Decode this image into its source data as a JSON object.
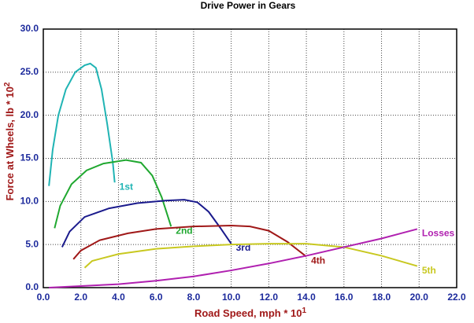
{
  "chart_data": {
    "type": "line",
    "title": "Drive Power in Gears",
    "x_label": "Road Speed, mph * 10",
    "x_label_exponent": "1",
    "y_label": "Force at Wheels, lb * 10",
    "y_label_exponent": "2",
    "xlim": [
      0,
      22
    ],
    "ylim": [
      0,
      30
    ],
    "grid": true,
    "xticks": [
      {
        "value": 0,
        "label": "0.0"
      },
      {
        "value": 2,
        "label": "2.0"
      },
      {
        "value": 4,
        "label": "4.0"
      },
      {
        "value": 6,
        "label": "6.0"
      },
      {
        "value": 8,
        "label": "8.0"
      },
      {
        "value": 10,
        "label": "10.0"
      },
      {
        "value": 12,
        "label": "12.0"
      },
      {
        "value": 14,
        "label": "14.0"
      },
      {
        "value": 16,
        "label": "16.0"
      },
      {
        "value": 18,
        "label": "18.0"
      },
      {
        "value": 20,
        "label": "20.0"
      },
      {
        "value": 22,
        "label": "22.0"
      }
    ],
    "yticks": [
      {
        "value": 0,
        "label": "0.0"
      },
      {
        "value": 5,
        "label": "5.0"
      },
      {
        "value": 10,
        "label": "10.0"
      },
      {
        "value": 15,
        "label": "15.0"
      },
      {
        "value": 20,
        "label": "20.0"
      },
      {
        "value": 25,
        "label": "25.0"
      },
      {
        "value": 30,
        "label": "30.0"
      }
    ],
    "series": [
      {
        "name": "1st",
        "color": "#20b4b4",
        "x": [
          0.3,
          0.5,
          0.8,
          1.2,
          1.7,
          2.2,
          2.5,
          2.8,
          3.1,
          3.4,
          3.7,
          3.8
        ],
        "values": [
          11.8,
          16,
          20,
          23,
          25,
          25.8,
          26,
          25.5,
          23,
          19,
          14.5,
          12.2
        ]
      },
      {
        "name": "2nd",
        "color": "#20a830",
        "x": [
          0.6,
          0.9,
          1.5,
          2.3,
          3.2,
          4.4,
          5.2,
          5.8,
          6.3,
          6.8
        ],
        "values": [
          6.9,
          9.5,
          12,
          13.6,
          14.4,
          14.8,
          14.5,
          13,
          10.5,
          7.1
        ]
      },
      {
        "name": "3rd",
        "color": "#1a1a8c",
        "x": [
          1.0,
          1.4,
          2.2,
          3.5,
          5.0,
          6.5,
          7.5,
          8.2,
          8.8,
          9.4,
          10.0
        ],
        "values": [
          4.7,
          6.5,
          8.2,
          9.2,
          9.8,
          10.1,
          10.2,
          9.9,
          8.8,
          7.0,
          5.1
        ]
      },
      {
        "name": "4th",
        "color": "#a01818",
        "x": [
          1.6,
          2.0,
          3.0,
          4.5,
          6.0,
          8.0,
          10.0,
          11.0,
          12.0,
          13.0,
          14.0
        ],
        "values": [
          3.3,
          4.3,
          5.5,
          6.3,
          6.8,
          7.1,
          7.2,
          7.1,
          6.6,
          5.3,
          3.6
        ]
      },
      {
        "name": "5th",
        "color": "#c8c820",
        "x": [
          2.2,
          2.6,
          4.0,
          6.0,
          8.0,
          10.0,
          12.0,
          14.0,
          16.0,
          18.0,
          19.9
        ],
        "values": [
          2.3,
          3.1,
          3.9,
          4.5,
          4.8,
          5.0,
          5.1,
          5.1,
          4.7,
          3.7,
          2.5
        ]
      },
      {
        "name": "Losses",
        "color": "#b020b0",
        "x": [
          0.3,
          4,
          6,
          8,
          10,
          12,
          14,
          16,
          18,
          19.9
        ],
        "values": [
          0,
          0.4,
          0.8,
          1.3,
          2.0,
          2.8,
          3.7,
          4.7,
          5.7,
          6.8
        ]
      }
    ]
  }
}
